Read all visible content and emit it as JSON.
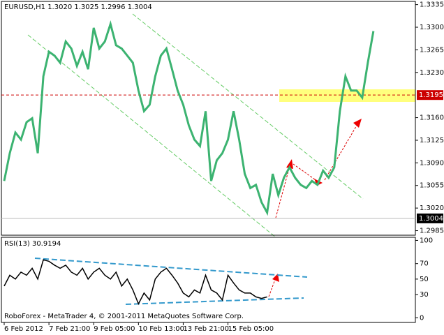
{
  "chart_data": [
    {
      "type": "line",
      "title": "EURUSD,H1  1.3020 1.3025 1.2996 1.3004",
      "x": [
        0,
        1,
        2,
        3,
        4,
        5,
        6,
        7,
        8,
        9,
        10,
        11,
        12,
        13,
        14,
        15,
        16,
        17,
        18,
        19,
        20,
        21,
        22,
        23,
        24,
        25,
        26,
        27,
        28,
        29,
        30,
        31,
        32,
        33,
        34,
        35,
        36,
        37,
        38,
        39,
        40,
        41,
        42,
        43,
        44,
        45,
        46,
        47,
        48,
        49,
        50,
        51,
        52,
        53,
        54,
        55,
        56,
        57,
        58,
        59,
        60,
        61,
        62,
        63,
        64,
        65,
        66
      ],
      "values": [
        1.3062,
        1.3105,
        1.3137,
        1.3126,
        1.3153,
        1.3159,
        1.3105,
        1.3224,
        1.3262,
        1.3256,
        1.3245,
        1.3278,
        1.3267,
        1.324,
        1.3262,
        1.3235,
        1.3299,
        1.3267,
        1.3278,
        1.3305,
        1.3272,
        1.3267,
        1.3256,
        1.3245,
        1.3202,
        1.317,
        1.318,
        1.3224,
        1.3256,
        1.3267,
        1.3235,
        1.3202,
        1.318,
        1.3148,
        1.3126,
        1.3116,
        1.317,
        1.3062,
        1.3094,
        1.3105,
        1.3126,
        1.317,
        1.3126,
        1.3073,
        1.3051,
        1.3056,
        1.3029,
        1.3013,
        1.3073,
        1.304,
        1.3067,
        1.3083,
        1.3067,
        1.3056,
        1.3051,
        1.3062,
        1.3056,
        1.3078,
        1.3067,
        1.3083,
        1.317,
        1.3224,
        1.3202,
        1.3202,
        1.3191,
        1.3245,
        1.3294
      ],
      "color": "#3cb371",
      "xlim": [
        -0.5,
        73.5
      ],
      "ylim": [
        1.2978,
        1.334
      ],
      "yticks": [
        1.3335,
        {
          "value": 1.33,
          "label": "1.3300"
        },
        1.3265,
        {
          "value": 1.323,
          "label": "1.3230"
        },
        {
          "value": 1.316,
          "label": "1.3160"
        },
        1.3125,
        {
          "value": 1.309,
          "label": "1.3090"
        },
        1.3055,
        {
          "value": 1.302,
          "label": "1.3020"
        },
        1.2985
      ],
      "hline": {
        "value": 1.3195,
        "label": "1.3195",
        "color": "#cc0000"
      },
      "current_price": {
        "value": 1.3004,
        "label": "1.3004"
      }
    },
    {
      "type": "line",
      "title": "RSI(13) 30.9194",
      "x": [
        0,
        1,
        2,
        3,
        4,
        5,
        6,
        7,
        8,
        9,
        10,
        11,
        12,
        13,
        14,
        15,
        16,
        17,
        18,
        19,
        20,
        21,
        22,
        23,
        24,
        25,
        26,
        27,
        28,
        29,
        30,
        31,
        32,
        33,
        34,
        35,
        36,
        37,
        38,
        39,
        40,
        41,
        42,
        43,
        44,
        45,
        46,
        47,
        48,
        49,
        50,
        51,
        52,
        53,
        54,
        55,
        56,
        57,
        58,
        59,
        60,
        61,
        62,
        63,
        64,
        65,
        66
      ],
      "values": [
        41,
        55,
        50,
        59,
        55,
        64,
        50,
        75,
        73,
        68,
        64,
        68,
        59,
        55,
        64,
        50,
        59,
        64,
        55,
        50,
        59,
        41,
        50,
        36,
        18,
        32,
        23,
        50,
        59,
        64,
        55,
        45,
        32,
        27,
        36,
        32,
        55,
        36,
        32,
        23,
        55,
        45,
        36,
        32,
        32,
        27,
        25,
        27,
        null,
        null,
        null,
        null,
        null,
        null,
        null,
        null,
        null,
        null,
        null,
        null,
        null,
        null,
        null,
        null,
        null,
        null,
        null
      ],
      "color": "#000000",
      "xlim": [
        -0.5,
        73.5
      ],
      "ylim": [
        -6,
        104
      ],
      "yticks": [
        100,
        70,
        50,
        30,
        0
      ],
      "xticks": [
        {
          "value": 0,
          "label": "6 Feb 2012"
        },
        {
          "value": 8,
          "label": "7 Feb 21:00"
        },
        {
          "value": 16,
          "label": "9 Feb 05:00"
        },
        {
          "value": 24,
          "label": "10 Feb 13:00"
        },
        {
          "value": 32,
          "label": "13 Feb 21:00"
        },
        {
          "value": 40,
          "label": "15 Feb 05:00"
        }
      ],
      "annotation": "RoboForex - MetaTrader 4, © 2001-2011 MetaQuotes Software Corp."
    }
  ]
}
